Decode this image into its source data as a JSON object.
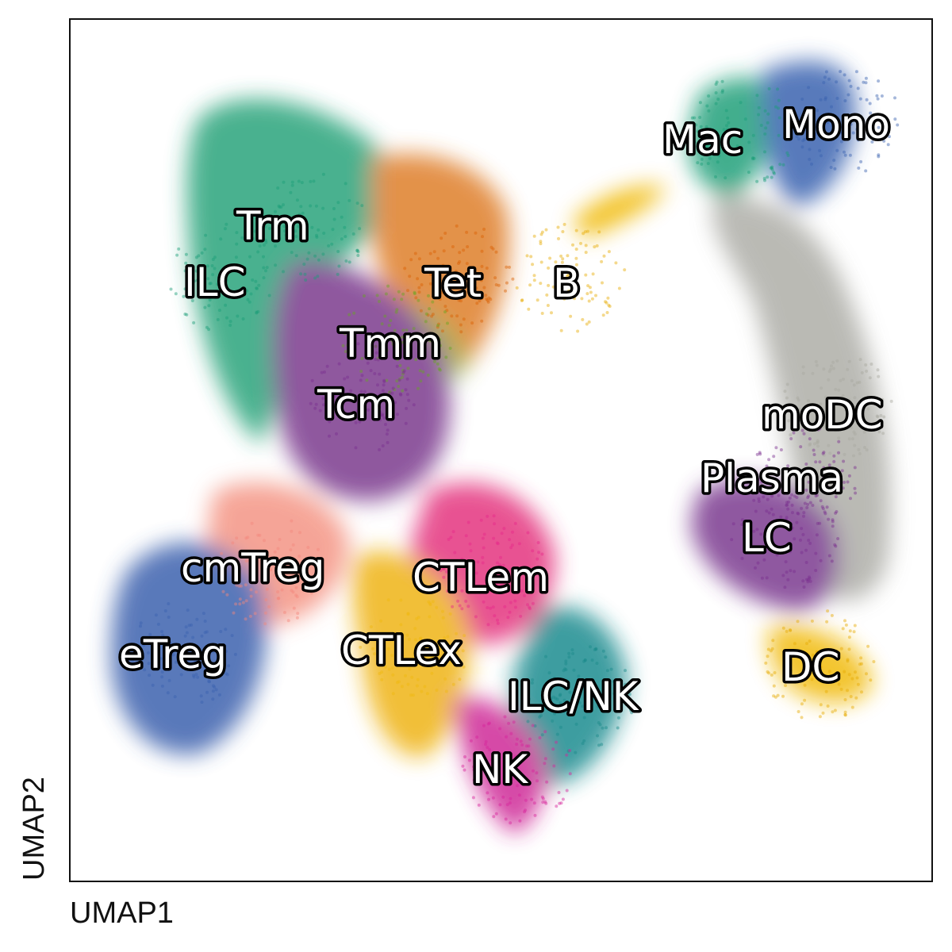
{
  "chart_data": {
    "type": "scatter",
    "title": "",
    "xlabel": "UMAP1",
    "ylabel": "UMAP2",
    "xlim": [
      0,
      100
    ],
    "ylim": [
      0,
      100
    ],
    "grid": false,
    "legend": "none",
    "series": [
      {
        "name": "Trm",
        "color": "#1b9e77",
        "x": 28,
        "y": 76
      },
      {
        "name": "ILC",
        "color": "#1b9e77",
        "x": 18,
        "y": 70
      },
      {
        "name": "Tet",
        "color": "#d95f02",
        "x": 45,
        "y": 70
      },
      {
        "name": "B",
        "color": "#e6ab02",
        "x": 58,
        "y": 70
      },
      {
        "name": "Tmm",
        "color": "#66a61e",
        "x": 38,
        "y": 63
      },
      {
        "name": "Tcm",
        "color": "#7b2f8e",
        "x": 34,
        "y": 56
      },
      {
        "name": "cmTreg",
        "color": "#f4877c",
        "x": 23,
        "y": 36
      },
      {
        "name": "eTreg",
        "color": "#3a62b0",
        "x": 13,
        "y": 26
      },
      {
        "name": "CTLem",
        "color": "#e7298a",
        "x": 49,
        "y": 36
      },
      {
        "name": "CTLex",
        "color": "#efb810",
        "x": 40,
        "y": 27
      },
      {
        "name": "ILC/NK",
        "color": "#1a8a8a",
        "x": 59,
        "y": 21
      },
      {
        "name": "NK",
        "color": "#d6249b",
        "x": 52,
        "y": 13
      },
      {
        "name": "Mac",
        "color": "#1b9e77",
        "x": 78,
        "y": 87
      },
      {
        "name": "Mono",
        "color": "#3a62b0",
        "x": 90,
        "y": 88
      },
      {
        "name": "moDC",
        "color": "#a8a8a0",
        "x": 89,
        "y": 55
      },
      {
        "name": "Plasma",
        "color": "#7b2f8e",
        "x": 85,
        "y": 47
      },
      {
        "name": "LC",
        "color": "#7b2f8e",
        "x": 83,
        "y": 40
      },
      {
        "name": "DC",
        "color": "#e6ab02",
        "x": 87,
        "y": 25
      }
    ]
  },
  "labels": {
    "trm": "Trm",
    "ilc": "ILC",
    "tet": "Tet",
    "b": "B",
    "tmm": "Tmm",
    "tcm": "Tcm",
    "cmtreg": "cmTreg",
    "etreg": "eTreg",
    "ctlem": "CTLem",
    "ctlex": "CTLex",
    "ilcnk": "ILC/NK",
    "nk": "NK",
    "mac": "Mac",
    "mono": "Mono",
    "modc": "moDC",
    "plasma": "Plasma",
    "lc": "LC",
    "dc": "DC"
  }
}
